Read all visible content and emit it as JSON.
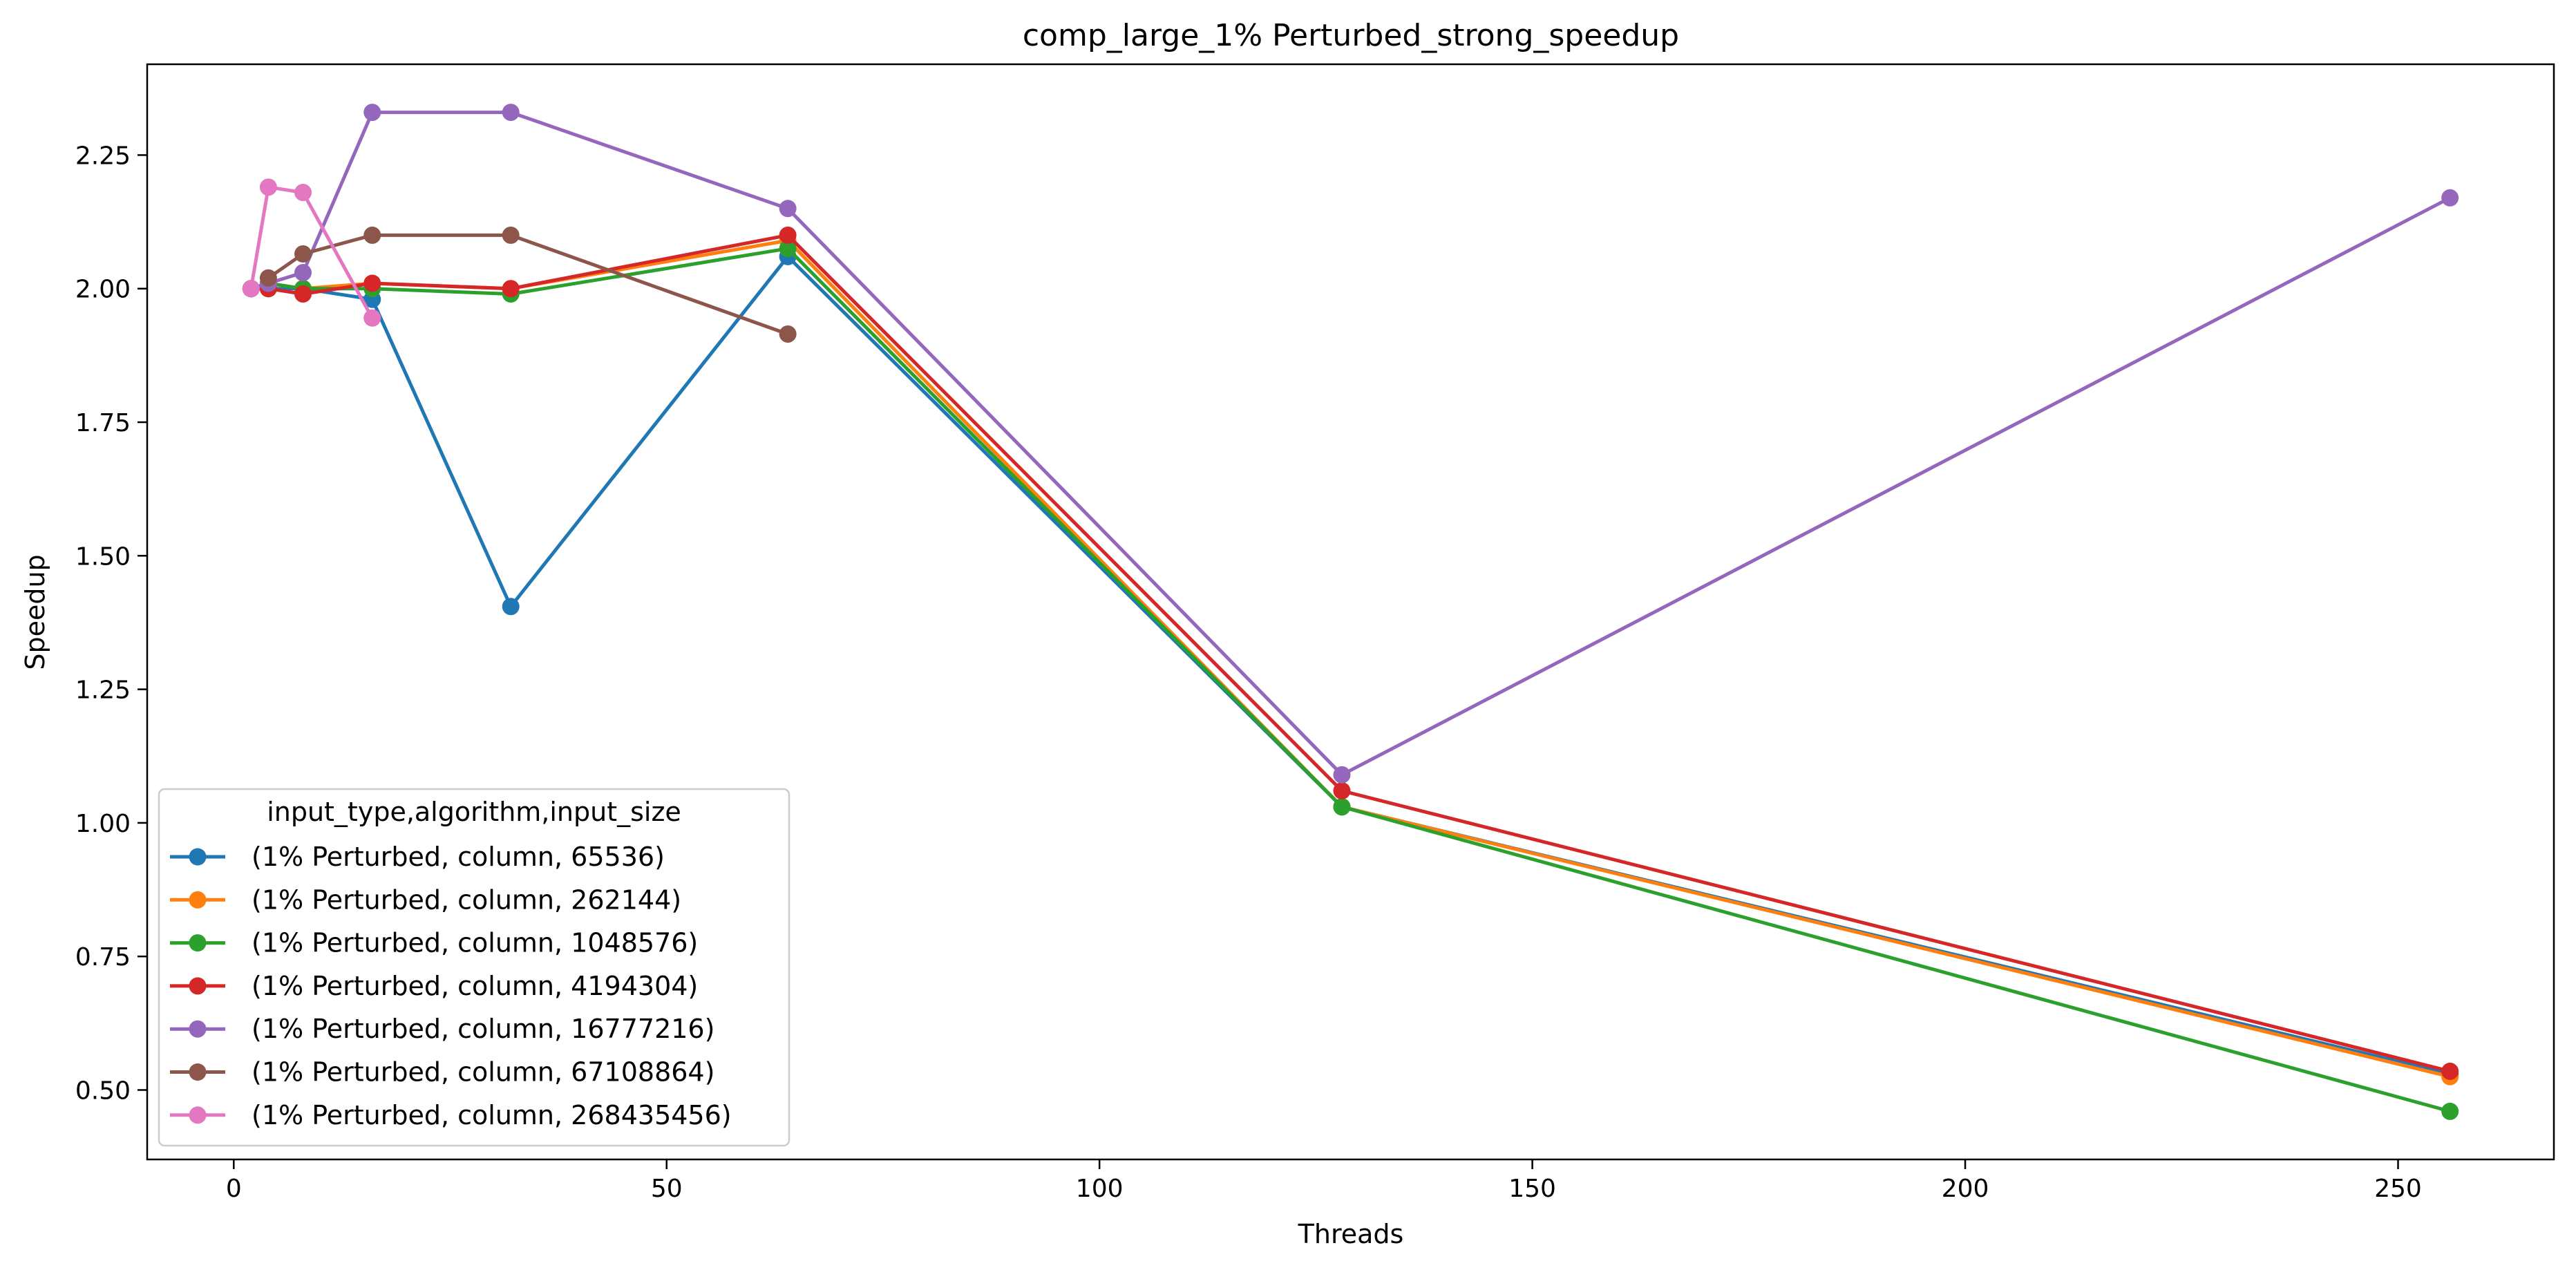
{
  "chart_data": {
    "type": "line",
    "title": "comp_large_1% Perturbed_strong_speedup",
    "xlabel": "Threads",
    "ylabel": "Speedup",
    "xlim": [
      -10,
      268
    ],
    "ylim": [
      0.37,
      2.42
    ],
    "xticks": [
      0,
      50,
      100,
      150,
      200,
      250
    ],
    "xtick_labels": [
      "0",
      "50",
      "100",
      "150",
      "200",
      "250"
    ],
    "yticks": [
      0.5,
      0.75,
      1.0,
      1.25,
      1.5,
      1.75,
      2.0,
      2.25
    ],
    "ytick_labels": [
      "0.50",
      "0.75",
      "1.00",
      "1.25",
      "1.50",
      "1.75",
      "2.00",
      "2.25"
    ],
    "grid": false,
    "legend_title": "input_type,algorithm,input_size",
    "legend_position": "lower-left",
    "series": [
      {
        "name": "(1% Perturbed, column, 65536)",
        "color": "#1f77b4",
        "x": [
          2,
          4,
          8,
          16,
          32,
          64,
          128,
          256
        ],
        "y": [
          2.0,
          2.0,
          2.0,
          1.98,
          1.405,
          2.06,
          1.03,
          0.53
        ]
      },
      {
        "name": "(1% Perturbed, column, 262144)",
        "color": "#ff7f0e",
        "x": [
          2,
          4,
          8,
          16,
          32,
          64,
          128,
          256
        ],
        "y": [
          2.0,
          2.01,
          2.0,
          2.01,
          2.0,
          2.09,
          1.03,
          0.525
        ]
      },
      {
        "name": "(1% Perturbed, column, 1048576)",
        "color": "#2ca02c",
        "x": [
          2,
          4,
          8,
          16,
          32,
          64,
          128,
          256
        ],
        "y": [
          2.0,
          2.01,
          2.0,
          2.0,
          1.99,
          2.075,
          1.03,
          0.46
        ]
      },
      {
        "name": "(1% Perturbed, column, 4194304)",
        "color": "#d62728",
        "x": [
          2,
          4,
          8,
          16,
          32,
          64,
          128,
          256
        ],
        "y": [
          2.0,
          2.0,
          1.99,
          2.01,
          2.0,
          2.1,
          1.06,
          0.535
        ]
      },
      {
        "name": "(1% Perturbed, column, 16777216)",
        "color": "#9467bd",
        "x": [
          2,
          4,
          8,
          16,
          32,
          64,
          128,
          256
        ],
        "y": [
          2.0,
          2.01,
          2.03,
          2.33,
          2.33,
          2.15,
          1.09,
          2.17
        ]
      },
      {
        "name": "(1% Perturbed, column, 67108864)",
        "color": "#8c564b",
        "x": [
          4,
          8,
          16,
          32,
          64
        ],
        "y": [
          2.02,
          2.065,
          2.1,
          2.1,
          1.915
        ]
      },
      {
        "name": "(1% Perturbed, column, 268435456)",
        "color": "#e377c2",
        "x": [
          2,
          4,
          8,
          16
        ],
        "y": [
          2.0,
          2.19,
          2.18,
          1.945
        ]
      }
    ]
  }
}
